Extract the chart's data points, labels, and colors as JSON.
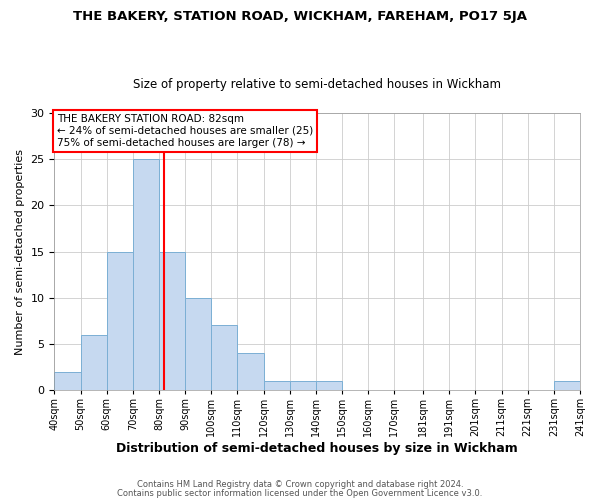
{
  "title": "THE BAKERY, STATION ROAD, WICKHAM, FAREHAM, PO17 5JA",
  "subtitle": "Size of property relative to semi-detached houses in Wickham",
  "xlabel": "Distribution of semi-detached houses by size in Wickham",
  "ylabel": "Number of semi-detached properties",
  "bin_edges": [
    40,
    50,
    60,
    70,
    80,
    90,
    100,
    110,
    120,
    130,
    140,
    150,
    160,
    170,
    181,
    191,
    201,
    211,
    221,
    231,
    241
  ],
  "counts": [
    2,
    6,
    15,
    25,
    15,
    10,
    7,
    4,
    1,
    1,
    1,
    0,
    0,
    0,
    0,
    0,
    0,
    0,
    0,
    1
  ],
  "bar_color": "#c6d9f0",
  "bar_edge_color": "#7bafd4",
  "reference_line_x": 82,
  "reference_line_color": "red",
  "ylim": [
    0,
    30
  ],
  "yticks": [
    0,
    5,
    10,
    15,
    20,
    25,
    30
  ],
  "tick_labels": [
    "40sqm",
    "50sqm",
    "60sqm",
    "70sqm",
    "80sqm",
    "90sqm",
    "100sqm",
    "110sqm",
    "120sqm",
    "130sqm",
    "140sqm",
    "150sqm",
    "160sqm",
    "170sqm",
    "181sqm",
    "191sqm",
    "201sqm",
    "211sqm",
    "221sqm",
    "231sqm",
    "241sqm"
  ],
  "annotation_title": "THE BAKERY STATION ROAD: 82sqm",
  "annotation_line1": "← 24% of semi-detached houses are smaller (25)",
  "annotation_line2": "75% of semi-detached houses are larger (78) →",
  "footnote1": "Contains HM Land Registry data © Crown copyright and database right 2024.",
  "footnote2": "Contains public sector information licensed under the Open Government Licence v3.0.",
  "background_color": "#ffffff",
  "grid_color": "#cccccc",
  "title_fontsize": 9.5,
  "subtitle_fontsize": 8.5,
  "xlabel_fontsize": 9,
  "ylabel_fontsize": 8,
  "tick_fontsize": 7,
  "annotation_fontsize": 7.5,
  "footnote_fontsize": 6
}
